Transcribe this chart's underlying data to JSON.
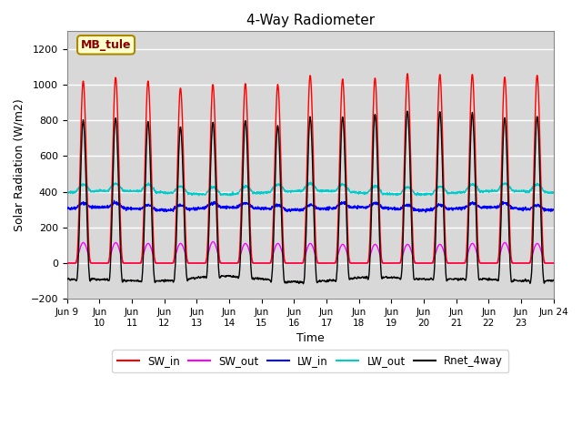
{
  "title": "4-Way Radiometer",
  "xlabel": "Time",
  "ylabel": "Solar Radiation (W/m2)",
  "ylim": [
    -200,
    1300
  ],
  "yticks": [
    -200,
    0,
    200,
    400,
    600,
    800,
    1000,
    1200
  ],
  "num_days": 15,
  "colors": {
    "SW_in": "#ff0000",
    "SW_out": "#ff00ff",
    "LW_in": "#0000ff",
    "LW_out": "#00cccc",
    "Rnet_4way": "#000000"
  },
  "station_label": "MB_tule",
  "station_box_color": "#ffffcc",
  "station_box_edge": "#aa8800",
  "station_text_color": "#880000",
  "background_color": "#d8d8d8",
  "grid_color": "#ffffff",
  "fig_bg": "#ffffff",
  "linewidth": 1.0,
  "sw_in_peaks": [
    1020,
    1040,
    1020,
    980,
    1000,
    1005,
    1000,
    1050,
    1030,
    1035,
    1060,
    1055,
    1055,
    1040,
    1050
  ],
  "sw_out_peaks": [
    115,
    115,
    110,
    110,
    120,
    110,
    110,
    110,
    105,
    105,
    105,
    105,
    110,
    115,
    110
  ],
  "lw_in_base": 305,
  "lw_in_amplitude": 25,
  "lw_out_base": 395,
  "lw_out_amplitude": 40,
  "rnet_night": -90,
  "x_tick_labels": [
    "Jun 9",
    "Jun\n10",
    "Jun\n11",
    "Jun\n12",
    "Jun\n13",
    "Jun\n14",
    "Jun\n15",
    "Jun\n16",
    "Jun\n17",
    "Jun\n18",
    "Jun\n19",
    "Jun\n20",
    "Jun\n21",
    "Jun\n22",
    "Jun\n23",
    "Jun 24"
  ],
  "points_per_day": 144
}
